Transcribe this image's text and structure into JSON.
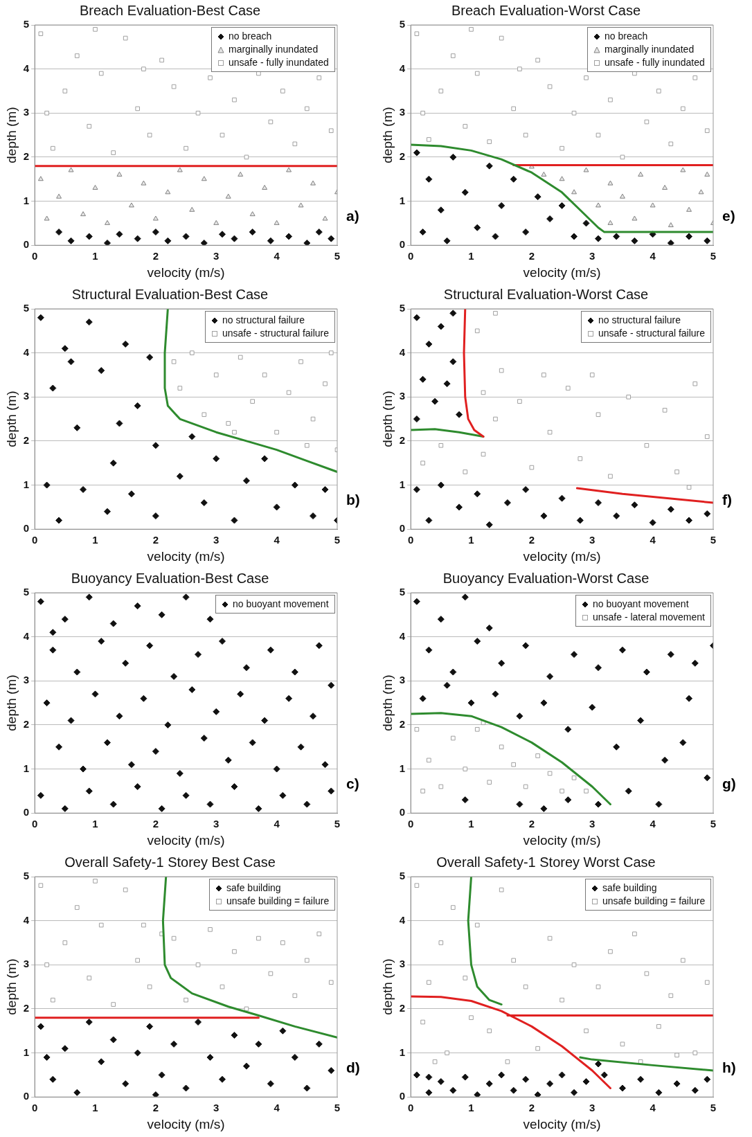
{
  "chart_data": [
    {
      "type": "scatter",
      "title": "Breach Evaluation-Best Case",
      "xlabel": "velocity (m/s)",
      "ylabel": "depth (m)",
      "xlim": [
        0,
        5
      ],
      "ylim": [
        0,
        5
      ],
      "xticks": [
        0,
        1,
        2,
        3,
        4,
        5
      ],
      "yticks": [
        0,
        1,
        2,
        3,
        4,
        5
      ],
      "grid": "y",
      "legend": "top right",
      "annotations": [
        "a)"
      ],
      "series": [
        {
          "name": "no breach",
          "marker": "diamond",
          "color": "#111111",
          "x": [
            0.4,
            0.6,
            0.9,
            1.2,
            1.4,
            1.7,
            2,
            2.2,
            2.5,
            2.8,
            3.1,
            3.3,
            3.6,
            3.9,
            4.2,
            4.5,
            4.7,
            4.9
          ],
          "values": [
            0.3,
            0.1,
            0.2,
            0.05,
            0.25,
            0.15,
            0.3,
            0.1,
            0.2,
            0.05,
            0.25,
            0.15,
            0.3,
            0.1,
            0.2,
            0.05,
            0.3,
            0.15
          ]
        },
        {
          "name": "marginally inundated",
          "marker": "triangle",
          "color": "#808080",
          "x": [
            0.1,
            0.2,
            0.4,
            0.6,
            0.8,
            1.0,
            1.2,
            1.4,
            1.6,
            1.8,
            2.0,
            2.2,
            2.4,
            2.6,
            2.8,
            3.0,
            3.2,
            3.4,
            3.6,
            3.8,
            4.0,
            4.2,
            4.4,
            4.6,
            4.8,
            5.0
          ],
          "values": [
            1.5,
            0.6,
            1.1,
            1.7,
            0.7,
            1.3,
            0.5,
            1.6,
            0.9,
            1.4,
            0.6,
            1.2,
            1.7,
            0.8,
            1.5,
            0.5,
            1.1,
            1.6,
            0.7,
            1.3,
            0.5,
            1.7,
            0.9,
            1.4,
            0.6,
            1.2
          ]
        },
        {
          "name": "unsafe - fully inundated",
          "marker": "square",
          "color": "#a0a0a0",
          "x": [
            0.1,
            0.3,
            0.5,
            0.7,
            0.9,
            1.1,
            1.3,
            1.5,
            1.7,
            1.9,
            2.1,
            2.3,
            2.5,
            2.7,
            2.9,
            3.1,
            3.3,
            3.5,
            3.7,
            3.9,
            4.1,
            4.3,
            4.5,
            4.7,
            4.9,
            0.2,
            1.0,
            1.8
          ],
          "values": [
            4.8,
            2.2,
            3.5,
            4.3,
            2.7,
            3.9,
            2.1,
            4.7,
            3.1,
            2.5,
            4.2,
            3.6,
            2.2,
            3.0,
            3.8,
            2.5,
            3.3,
            2.0,
            3.9,
            2.8,
            3.5,
            2.3,
            3.1,
            3.8,
            2.6,
            3.0,
            4.9,
            4.0
          ]
        },
        {
          "type": "line",
          "marker": "none",
          "color": "#e02020",
          "x": [
            0,
            5
          ],
          "values": [
            1.8,
            1.8
          ]
        }
      ]
    },
    {
      "type": "scatter",
      "title": "Breach Evaluation-Worst Case",
      "xlabel": "velocity (m/s)",
      "ylabel": "depth (m)",
      "xlim": [
        0,
        5
      ],
      "ylim": [
        0,
        5
      ],
      "xticks": [
        0,
        1,
        2,
        3,
        4,
        5
      ],
      "yticks": [
        0,
        1,
        2,
        3,
        4,
        5
      ],
      "grid": "y",
      "legend": "top right",
      "annotations": [
        "e)"
      ],
      "series": [
        {
          "name": "no breach",
          "marker": "diamond",
          "color": "#111111",
          "x": [
            0.1,
            0.3,
            0.5,
            0.2,
            0.7,
            0.9,
            1.1,
            1.3,
            1.5,
            1.7,
            1.9,
            2.1,
            2.3,
            2.5,
            2.7,
            2.9,
            3.1,
            3.4,
            3.7,
            4.0,
            4.3,
            4.6,
            4.9,
            0.6,
            1.4
          ],
          "values": [
            2.1,
            1.5,
            0.8,
            0.3,
            2.0,
            1.2,
            0.4,
            1.8,
            0.9,
            1.5,
            0.3,
            1.1,
            0.6,
            0.9,
            0.2,
            0.5,
            0.15,
            0.2,
            0.1,
            0.25,
            0.05,
            0.2,
            0.1,
            0.1,
            0.2
          ]
        },
        {
          "name": "marginally inundated",
          "marker": "triangle",
          "color": "#808080",
          "x": [
            2.0,
            2.2,
            2.5,
            2.7,
            2.9,
            3.1,
            3.3,
            3.3,
            3.5,
            3.7,
            3.8,
            4.0,
            4.2,
            4.3,
            4.5,
            4.6,
            4.8,
            5.0,
            4.9
          ],
          "values": [
            1.78,
            1.6,
            1.5,
            1.2,
            1.7,
            0.9,
            1.4,
            0.5,
            1.1,
            0.6,
            1.6,
            0.9,
            1.3,
            0.45,
            1.7,
            0.8,
            1.2,
            0.5,
            1.6
          ]
        },
        {
          "name": "unsafe - fully inundated",
          "marker": "square",
          "color": "#a0a0a0",
          "x": [
            0.1,
            0.3,
            0.5,
            0.7,
            0.9,
            1.1,
            1.3,
            1.5,
            1.7,
            1.9,
            2.1,
            2.3,
            2.5,
            2.7,
            2.9,
            3.1,
            3.3,
            3.5,
            3.7,
            3.9,
            4.1,
            4.3,
            4.5,
            4.7,
            4.9,
            0.2,
            1.0,
            1.8
          ],
          "values": [
            4.8,
            2.4,
            3.5,
            4.3,
            2.7,
            3.9,
            2.35,
            4.7,
            3.1,
            2.5,
            4.2,
            3.6,
            2.2,
            3.0,
            3.8,
            2.5,
            3.3,
            2.0,
            3.9,
            2.8,
            3.5,
            2.3,
            3.1,
            3.8,
            2.6,
            3.0,
            4.9,
            4.0
          ]
        },
        {
          "type": "line",
          "marker": "none",
          "color": "#2e8b2e",
          "x": [
            0,
            0.5,
            1,
            1.5,
            2,
            2.5,
            2.8,
            3.1,
            3.2,
            3.5,
            5
          ],
          "values": [
            2.28,
            2.25,
            2.15,
            1.95,
            1.65,
            1.2,
            0.8,
            0.4,
            0.3,
            0.3,
            0.3
          ]
        },
        {
          "type": "line",
          "marker": "none",
          "color": "#e02020",
          "x": [
            1.7,
            5
          ],
          "values": [
            1.82,
            1.82
          ]
        }
      ]
    },
    {
      "type": "scatter",
      "title": "Structural Evaluation-Best Case",
      "xlabel": "velocity (m/s)",
      "ylabel": "depth (m)",
      "xlim": [
        0,
        5
      ],
      "ylim": [
        0,
        5
      ],
      "xticks": [
        0,
        1,
        2,
        3,
        4,
        5
      ],
      "yticks": [
        0,
        1,
        2,
        3,
        4,
        5
      ],
      "grid": "y",
      "legend": "top right",
      "annotations": [
        "b)"
      ],
      "series": [
        {
          "name": "no structural failure",
          "marker": "diamond",
          "color": "#111111",
          "x": [
            0.1,
            0.3,
            0.5,
            0.7,
            0.9,
            1.1,
            1.3,
            1.5,
            1.7,
            1.9,
            2.0,
            0.2,
            0.4,
            0.8,
            1.2,
            1.6,
            2.0,
            2.4,
            2.6,
            2.8,
            3.0,
            3.3,
            3.5,
            3.8,
            4.0,
            4.3,
            4.6,
            4.8,
            5.0,
            1.4,
            0.6
          ],
          "values": [
            4.8,
            3.2,
            4.1,
            2.3,
            4.7,
            3.6,
            1.5,
            4.2,
            2.8,
            3.9,
            1.9,
            1.0,
            0.2,
            0.9,
            0.4,
            0.8,
            0.3,
            1.2,
            2.1,
            0.6,
            1.6,
            0.2,
            1.1,
            1.6,
            0.5,
            1.0,
            0.3,
            0.9,
            0.2,
            2.4,
            3.8
          ]
        },
        {
          "name": "unsafe - structural failure",
          "marker": "square",
          "color": "#a0a0a0",
          "x": [
            2.4,
            2.6,
            2.8,
            3.0,
            3.2,
            3.4,
            3.6,
            3.8,
            4.0,
            4.2,
            4.4,
            4.6,
            4.8,
            5.0,
            4.5,
            3.3,
            2.3,
            4.9
          ],
          "values": [
            3.2,
            4.0,
            2.6,
            3.5,
            2.4,
            3.9,
            2.9,
            3.5,
            2.2,
            3.1,
            3.8,
            2.5,
            3.3,
            1.8,
            1.9,
            2.2,
            3.8,
            4.0
          ]
        },
        {
          "type": "line",
          "marker": "none",
          "color": "#2e8b2e",
          "x": [
            2.2,
            2.15,
            2.15,
            2.2,
            2.4,
            3,
            3.5,
            4,
            4.5,
            5
          ],
          "values": [
            5,
            4,
            3.2,
            2.8,
            2.5,
            2.2,
            2.0,
            1.8,
            1.55,
            1.3
          ]
        }
      ]
    },
    {
      "type": "scatter",
      "title": "Structural Evaluation-Worst Case",
      "xlabel": "velocity (m/s)",
      "ylabel": "depth (m)",
      "xlim": [
        0,
        5
      ],
      "ylim": [
        0,
        5
      ],
      "xticks": [
        0,
        1,
        2,
        3,
        4,
        5
      ],
      "yticks": [
        0,
        1,
        2,
        3,
        4,
        5
      ],
      "grid": "y",
      "legend": "top right",
      "annotations": [
        "f)"
      ],
      "series": [
        {
          "name": "no structural failure",
          "marker": "diamond",
          "color": "#111111",
          "x": [
            0.1,
            0.3,
            0.5,
            0.7,
            0.2,
            0.4,
            0.6,
            0.8,
            0.1,
            0.7,
            0.1,
            0.3,
            0.5,
            0.8,
            1.1,
            1.3,
            1.6,
            1.9,
            2.2,
            2.5,
            2.8,
            3.1,
            3.4,
            3.7,
            4.0,
            4.3,
            4.6,
            4.9
          ],
          "values": [
            4.8,
            4.2,
            4.6,
            3.8,
            3.4,
            2.9,
            3.3,
            2.6,
            2.5,
            4.9,
            0.9,
            0.2,
            1.0,
            0.5,
            0.8,
            0.1,
            0.6,
            0.9,
            0.3,
            0.7,
            0.2,
            0.6,
            0.3,
            0.55,
            0.15,
            0.45,
            0.2,
            0.35
          ]
        },
        {
          "name": "unsafe - structural failure",
          "marker": "square",
          "color": "#a0a0a0",
          "x": [
            0.2,
            0.5,
            0.9,
            1.2,
            1.4,
            1.2,
            1.1,
            1.5,
            1.8,
            2.0,
            2.3,
            2.6,
            2.8,
            3.1,
            3.3,
            3.6,
            3.9,
            4.2,
            4.4,
            4.7,
            4.9,
            3.0,
            1.4,
            2.2,
            4.6
          ],
          "values": [
            1.5,
            1.9,
            1.3,
            1.7,
            2.5,
            3.1,
            4.5,
            3.6,
            2.9,
            1.4,
            2.2,
            3.2,
            1.6,
            2.6,
            1.2,
            3.0,
            1.9,
            2.7,
            1.3,
            3.3,
            2.1,
            3.5,
            4.9,
            3.5,
            0.95
          ]
        },
        {
          "type": "line",
          "marker": "none",
          "color": "#e02020",
          "x": [
            0.9,
            0.88,
            0.9,
            0.95,
            1.05,
            1.2
          ],
          "values": [
            5,
            4,
            3,
            2.5,
            2.25,
            2.1
          ]
        },
        {
          "type": "line",
          "marker": "none",
          "color": "#2e8b2e",
          "x": [
            0,
            0.4,
            0.8,
            1.2
          ],
          "values": [
            2.25,
            2.27,
            2.2,
            2.1
          ]
        },
        {
          "type": "line",
          "marker": "none",
          "color": "#e02020",
          "x": [
            2.75,
            3.5,
            5
          ],
          "values": [
            0.93,
            0.8,
            0.6
          ]
        }
      ]
    },
    {
      "type": "scatter",
      "title": "Buoyancy Evaluation-Best Case",
      "xlabel": "velocity (m/s)",
      "ylabel": "depth (m)",
      "xlim": [
        0,
        5
      ],
      "ylim": [
        0,
        5
      ],
      "xticks": [
        0,
        1,
        2,
        3,
        4,
        5
      ],
      "yticks": [
        0,
        1,
        2,
        3,
        4,
        5
      ],
      "grid": "y",
      "legend": "top right",
      "annotations": [
        "c)"
      ],
      "series": [
        {
          "name": "no buoyant movement",
          "marker": "diamond",
          "color": "#111111",
          "x": [
            0.1,
            0.5,
            0.9,
            1.3,
            1.7,
            2.1,
            2.5,
            2.9,
            0.3,
            0.7,
            1.1,
            1.5,
            1.9,
            2.3,
            2.7,
            3.1,
            3.5,
            3.9,
            4.3,
            4.7,
            0.3,
            0.2,
            0.6,
            1.0,
            1.4,
            1.8,
            2.2,
            2.6,
            3.0,
            3.4,
            3.8,
            4.2,
            4.6,
            4.9,
            0.4,
            0.8,
            1.2,
            1.6,
            2.0,
            2.4,
            2.8,
            3.2,
            3.6,
            4.0,
            4.4,
            4.8,
            0.1,
            0.5,
            0.9,
            1.3,
            1.7,
            2.1,
            2.5,
            2.9,
            3.3,
            3.7,
            4.1,
            4.5,
            4.9
          ],
          "values": [
            4.8,
            4.4,
            4.9,
            4.3,
            4.7,
            4.5,
            4.9,
            4.4,
            3.7,
            3.2,
            3.9,
            3.4,
            3.8,
            3.1,
            3.6,
            3.9,
            3.3,
            3.7,
            3.2,
            3.8,
            4.1,
            2.5,
            2.1,
            2.7,
            2.2,
            2.6,
            2.0,
            2.8,
            2.3,
            2.7,
            2.1,
            2.6,
            2.2,
            2.9,
            1.5,
            1.0,
            1.6,
            1.1,
            1.4,
            0.9,
            1.7,
            1.2,
            1.6,
            1.0,
            1.5,
            1.1,
            0.4,
            0.1,
            0.5,
            0.2,
            0.6,
            0.1,
            0.4,
            0.2,
            0.6,
            0.1,
            0.4,
            0.2,
            0.5
          ]
        }
      ]
    },
    {
      "type": "scatter",
      "title": "Buoyancy Evaluation-Worst Case",
      "xlabel": "velocity (m/s)",
      "ylabel": "depth (m)",
      "xlim": [
        0,
        5
      ],
      "ylim": [
        0,
        5
      ],
      "xticks": [
        0,
        1,
        2,
        3,
        4,
        5
      ],
      "yticks": [
        0,
        1,
        2,
        3,
        4,
        5
      ],
      "grid": "y",
      "legend": "top right",
      "annotations": [
        "g)"
      ],
      "series": [
        {
          "name": "no buoyant movement",
          "marker": "diamond",
          "color": "#111111",
          "x": [
            0.1,
            0.5,
            0.9,
            1.3,
            0.3,
            0.7,
            1.1,
            1.5,
            1.9,
            2.3,
            2.7,
            3.1,
            3.5,
            3.9,
            4.3,
            4.7,
            5.0,
            0.2,
            0.6,
            1.0,
            1.4,
            1.8,
            2.2,
            2.6,
            3.0,
            3.4,
            3.8,
            4.2,
            4.6,
            4.9,
            3.6,
            4.1,
            4.5,
            2.6,
            1.8,
            0.9,
            2.2,
            3.1
          ],
          "values": [
            4.8,
            4.4,
            4.9,
            4.2,
            3.7,
            3.2,
            3.9,
            3.4,
            3.8,
            3.1,
            3.6,
            3.3,
            3.7,
            3.2,
            3.6,
            3.4,
            3.8,
            2.6,
            2.9,
            2.5,
            2.7,
            2.2,
            2.5,
            1.9,
            2.4,
            1.5,
            2.1,
            1.2,
            2.6,
            0.8,
            0.5,
            0.2,
            1.6,
            0.3,
            0.2,
            0.3,
            0.1,
            0.2
          ]
        },
        {
          "name": "unsafe - lateral movement",
          "marker": "square",
          "color": "#a0a0a0",
          "x": [
            0.1,
            0.3,
            0.5,
            0.7,
            0.9,
            1.1,
            1.3,
            1.5,
            1.7,
            1.9,
            2.1,
            2.3,
            2.5,
            2.7,
            2.9,
            0.2,
            1.2
          ],
          "values": [
            1.9,
            1.2,
            0.6,
            1.7,
            1.0,
            1.9,
            0.7,
            1.5,
            1.1,
            0.6,
            1.3,
            0.9,
            0.5,
            0.8,
            0.5,
            0.5,
            2.05
          ]
        },
        {
          "type": "line",
          "marker": "none",
          "color": "#2e8b2e",
          "x": [
            0,
            0.5,
            1,
            1.5,
            2,
            2.5,
            3,
            3.3
          ],
          "values": [
            2.25,
            2.27,
            2.2,
            1.95,
            1.6,
            1.15,
            0.6,
            0.2
          ]
        }
      ]
    },
    {
      "type": "scatter",
      "title": "Overall Safety-1 Storey Best Case",
      "xlabel": "velocity (m/s)",
      "ylabel": "depth (m)",
      "xlim": [
        0,
        5
      ],
      "ylim": [
        0,
        5
      ],
      "xticks": [
        0,
        1,
        2,
        3,
        4,
        5
      ],
      "yticks": [
        0,
        1,
        2,
        3,
        4,
        5
      ],
      "grid": "y",
      "legend": "top right",
      "annotations": [
        "d)"
      ],
      "series": [
        {
          "name": "safe building",
          "marker": "diamond",
          "color": "#111111",
          "x": [
            0.1,
            0.3,
            0.5,
            0.7,
            0.9,
            1.1,
            1.3,
            1.5,
            1.7,
            1.9,
            2.1,
            2.3,
            2.5,
            2.7,
            2.9,
            3.1,
            3.3,
            3.5,
            3.7,
            3.9,
            4.1,
            4.3,
            4.5,
            4.7,
            4.9,
            0.2,
            2.0
          ],
          "values": [
            1.6,
            0.4,
            1.1,
            0.1,
            1.7,
            0.8,
            1.3,
            0.3,
            1.0,
            1.6,
            0.5,
            1.2,
            0.2,
            1.7,
            0.9,
            0.4,
            1.4,
            0.7,
            1.2,
            0.3,
            1.5,
            0.9,
            0.2,
            1.2,
            0.6,
            0.9,
            0.05
          ]
        },
        {
          "name": "unsafe building = failure",
          "marker": "square",
          "color": "#a0a0a0",
          "x": [
            0.1,
            0.3,
            0.5,
            0.7,
            0.9,
            1.1,
            1.3,
            1.5,
            1.7,
            1.9,
            2.1,
            2.3,
            2.5,
            2.7,
            2.9,
            3.1,
            3.3,
            3.5,
            3.7,
            3.9,
            4.1,
            4.3,
            4.5,
            4.7,
            4.9,
            0.2,
            1.0,
            1.8
          ],
          "values": [
            4.8,
            2.2,
            3.5,
            4.3,
            2.7,
            3.9,
            2.1,
            4.7,
            3.1,
            2.5,
            3.7,
            3.6,
            2.2,
            3.0,
            3.8,
            2.5,
            3.3,
            2.0,
            3.6,
            2.8,
            3.5,
            2.3,
            3.1,
            3.7,
            2.6,
            3.0,
            4.9,
            3.9
          ]
        },
        {
          "type": "line",
          "marker": "none",
          "color": "#2e8b2e",
          "x": [
            2.17,
            2.12,
            2.15,
            2.25,
            2.6,
            3.2,
            3.7,
            4.3,
            5
          ],
          "values": [
            5,
            4,
            3,
            2.7,
            2.35,
            2.05,
            1.85,
            1.6,
            1.35
          ]
        },
        {
          "type": "line",
          "marker": "none",
          "color": "#e02020",
          "x": [
            0,
            3.7
          ],
          "values": [
            1.8,
            1.8
          ]
        }
      ]
    },
    {
      "type": "scatter",
      "title": "Overall Safety-1 Storey Worst Case",
      "xlabel": "velocity (m/s)",
      "ylabel": "depth (m)",
      "xlim": [
        0,
        5
      ],
      "ylim": [
        0,
        5
      ],
      "xticks": [
        0,
        1,
        2,
        3,
        4,
        5
      ],
      "yticks": [
        0,
        1,
        2,
        3,
        4,
        5
      ],
      "grid": "y",
      "legend": "top right",
      "annotations": [
        "h)"
      ],
      "series": [
        {
          "name": "safe building",
          "marker": "diamond",
          "color": "#111111",
          "x": [
            0.1,
            0.3,
            0.5,
            0.7,
            0.9,
            1.1,
            1.3,
            1.5,
            1.7,
            1.9,
            2.1,
            2.3,
            2.5,
            2.7,
            2.9,
            3.2,
            3.5,
            3.8,
            4.1,
            4.4,
            4.7,
            4.9,
            3.1,
            0.3
          ],
          "values": [
            0.5,
            0.1,
            0.35,
            0.15,
            0.45,
            0.05,
            0.3,
            0.5,
            0.15,
            0.4,
            0.05,
            0.3,
            0.5,
            0.1,
            0.35,
            0.5,
            0.2,
            0.4,
            0.1,
            0.3,
            0.15,
            0.4,
            0.75,
            0.45
          ]
        },
        {
          "name": "unsafe building = failure",
          "marker": "square",
          "color": "#a0a0a0",
          "x": [
            0.1,
            0.3,
            0.5,
            0.7,
            0.9,
            1.1,
            1.3,
            1.5,
            1.7,
            1.9,
            2.1,
            2.3,
            2.5,
            2.7,
            2.9,
            3.1,
            3.3,
            3.5,
            3.7,
            3.9,
            4.1,
            4.3,
            4.5,
            4.7,
            4.9,
            0.2,
            0.6,
            1.0,
            0.4,
            1.6,
            3.8,
            4.4
          ],
          "values": [
            4.8,
            2.6,
            3.5,
            4.3,
            2.7,
            3.9,
            1.5,
            4.7,
            3.1,
            2.5,
            1.1,
            3.6,
            2.2,
            3.0,
            1.5,
            2.5,
            3.3,
            1.2,
            3.7,
            2.8,
            1.6,
            2.3,
            3.1,
            1.0,
            2.6,
            1.7,
            1.0,
            1.8,
            0.8,
            0.8,
            0.8,
            0.95
          ]
        },
        {
          "type": "line",
          "marker": "none",
          "color": "#2e8b2e",
          "x": [
            1.0,
            0.95,
            1.0,
            1.1,
            1.3,
            1.5
          ],
          "values": [
            5,
            4,
            3,
            2.5,
            2.2,
            2.1
          ]
        },
        {
          "type": "line",
          "marker": "none",
          "color": "#2e8b2e",
          "x": [
            2.8,
            3,
            4,
            5
          ],
          "values": [
            0.9,
            0.85,
            0.72,
            0.6
          ]
        },
        {
          "type": "line",
          "marker": "none",
          "color": "#e02020",
          "x": [
            0,
            0.5,
            1,
            1.5,
            2,
            2.5,
            3,
            3.3
          ],
          "values": [
            2.28,
            2.27,
            2.18,
            1.95,
            1.6,
            1.15,
            0.6,
            0.2
          ]
        },
        {
          "type": "line",
          "marker": "none",
          "color": "#e02020",
          "x": [
            1.6,
            5
          ],
          "values": [
            1.85,
            1.85
          ]
        }
      ]
    }
  ]
}
